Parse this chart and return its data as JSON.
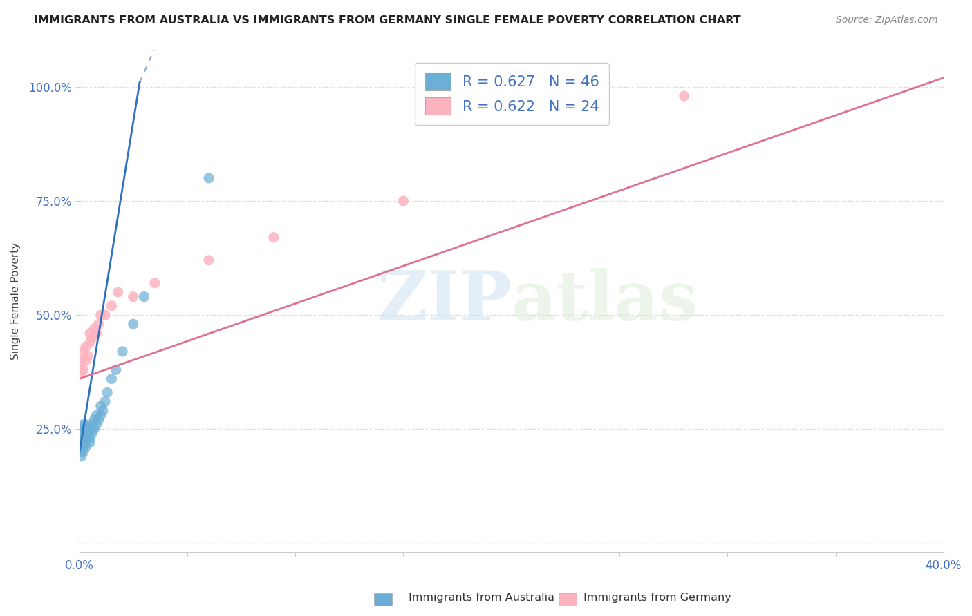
{
  "title": "IMMIGRANTS FROM AUSTRALIA VS IMMIGRANTS FROM GERMANY SINGLE FEMALE POVERTY CORRELATION CHART",
  "source": "Source: ZipAtlas.com",
  "ylabel": "Single Female Poverty",
  "xlim": [
    0.0,
    0.4
  ],
  "ylim": [
    -0.02,
    1.08
  ],
  "color_australia": "#6baed6",
  "color_germany": "#fcb3c0",
  "color_australia_line": "#3070c0",
  "color_germany_line": "#e07090",
  "background_color": "#ffffff",
  "grid_color": "#cccccc",
  "legend_text1": "R = 0.627   N = 46",
  "legend_text2": "R = 0.622   N = 24",
  "watermark_zip": "ZIP",
  "watermark_atlas": "atlas",
  "tick_color": "#4472c4",
  "aus_x": [
    0.001,
    0.001,
    0.001,
    0.001,
    0.001,
    0.001,
    0.001,
    0.001,
    0.001,
    0.002,
    0.002,
    0.002,
    0.002,
    0.002,
    0.002,
    0.002,
    0.003,
    0.003,
    0.003,
    0.003,
    0.003,
    0.003,
    0.004,
    0.004,
    0.004,
    0.005,
    0.005,
    0.005,
    0.006,
    0.006,
    0.007,
    0.007,
    0.008,
    0.008,
    0.009,
    0.01,
    0.01,
    0.011,
    0.012,
    0.013,
    0.015,
    0.017,
    0.02,
    0.025,
    0.03,
    0.06
  ],
  "aus_y": [
    0.19,
    0.2,
    0.21,
    0.22,
    0.22,
    0.23,
    0.23,
    0.24,
    0.25,
    0.2,
    0.21,
    0.22,
    0.23,
    0.24,
    0.25,
    0.26,
    0.21,
    0.22,
    0.23,
    0.24,
    0.25,
    0.26,
    0.23,
    0.24,
    0.25,
    0.22,
    0.23,
    0.25,
    0.24,
    0.26,
    0.25,
    0.27,
    0.26,
    0.28,
    0.27,
    0.28,
    0.3,
    0.29,
    0.31,
    0.33,
    0.36,
    0.38,
    0.42,
    0.48,
    0.54,
    0.8
  ],
  "ger_x": [
    0.001,
    0.001,
    0.001,
    0.002,
    0.002,
    0.003,
    0.003,
    0.004,
    0.005,
    0.005,
    0.006,
    0.007,
    0.008,
    0.009,
    0.01,
    0.012,
    0.015,
    0.018,
    0.025,
    0.035,
    0.06,
    0.09,
    0.15,
    0.28
  ],
  "ger_y": [
    0.37,
    0.38,
    0.4,
    0.38,
    0.42,
    0.4,
    0.43,
    0.41,
    0.44,
    0.46,
    0.45,
    0.47,
    0.46,
    0.48,
    0.5,
    0.5,
    0.52,
    0.55,
    0.54,
    0.57,
    0.62,
    0.67,
    0.75,
    0.98
  ],
  "aus_line_x": [
    0.0,
    0.028
  ],
  "aus_line_y": [
    0.195,
    1.01
  ],
  "ger_line_x": [
    0.0,
    0.4
  ],
  "ger_line_y": [
    0.36,
    1.02
  ]
}
